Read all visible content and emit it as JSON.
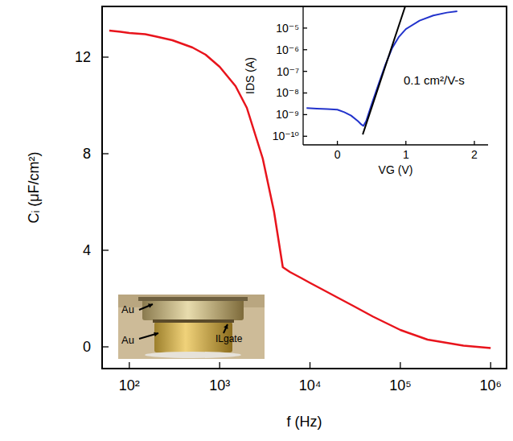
{
  "chart_data": [
    {
      "type": "line",
      "x_label": "f (Hz)",
      "y_label": "Cᵢ (μF/cm²)",
      "log": "x",
      "xlim": [
        50,
        1500000
      ],
      "xticks": [
        {
          "value": 100,
          "label": "10²"
        },
        {
          "value": 1000,
          "label": "10³"
        },
        {
          "value": 10000,
          "label": "10⁴"
        },
        {
          "value": 100000,
          "label": "10⁵"
        },
        {
          "value": 1000000,
          "label": "10⁶"
        }
      ],
      "ylim": [
        -0.9,
        14.1
      ],
      "yticks": [
        0,
        4,
        8,
        12
      ],
      "x": [
        60,
        80,
        100,
        150,
        200,
        300,
        500,
        700,
        1000,
        1500,
        2000,
        3000,
        4000,
        5000,
        6000,
        8000,
        10000,
        15000,
        20000,
        30000,
        50000,
        100000,
        200000,
        500000,
        1000000
      ],
      "series": [
        {
          "color": "#e8141c",
          "line_style": "solid",
          "values": [
            13.1,
            13.05,
            13.0,
            12.95,
            12.85,
            12.7,
            12.4,
            12.1,
            11.6,
            10.8,
            9.9,
            7.8,
            5.6,
            3.3,
            3.1,
            2.85,
            2.65,
            2.3,
            2.05,
            1.7,
            1.25,
            0.7,
            0.3,
            0.05,
            -0.05
          ]
        }
      ],
      "annotations": [
        "Au",
        "Au",
        "ILgate"
      ]
    },
    {
      "type": "line",
      "x_label": "VG (V)",
      "y_label": "IDS (A)",
      "log": "y",
      "xlim": [
        -0.5,
        2.2
      ],
      "xticks": [
        0,
        1,
        2
      ],
      "ylim": [
        4e-11,
        0.0001
      ],
      "yticks": [
        {
          "value": 1e-10,
          "label": "10⁻¹⁰"
        },
        {
          "value": 1e-09,
          "label": "10⁻⁹"
        },
        {
          "value": 1e-08,
          "label": "10⁻⁸"
        },
        {
          "value": 1e-07,
          "label": "10⁻⁷"
        },
        {
          "value": 1e-06,
          "label": "10⁻⁶"
        },
        {
          "value": 1e-05,
          "label": "10⁻⁵"
        }
      ],
      "series": [
        {
          "color": "#2233cc",
          "line_style": "solid",
          "x": [
            -0.45,
            -0.3,
            -0.15,
            0,
            0.1,
            0.2,
            0.3,
            0.35,
            0.38,
            0.42,
            0.5,
            0.6,
            0.7,
            0.8,
            0.9,
            1.0,
            1.2,
            1.4,
            1.6,
            1.75
          ],
          "values": [
            2e-09,
            1.9e-09,
            1.8e-09,
            1.7e-09,
            1.3e-09,
            9e-10,
            5e-10,
            3.5e-10,
            3e-10,
            5e-10,
            3e-09,
            2.5e-08,
            2e-07,
            1.2e-06,
            4e-06,
            9e-06,
            2.2e-05,
            3.8e-05,
            5.2e-05,
            6e-05
          ]
        },
        {
          "color": "#000000",
          "line_style": "solid",
          "x": [
            0.37,
            0.99
          ],
          "values": [
            1.2e-10,
            0.0001
          ]
        }
      ],
      "annotations": [
        "0.1 cm²/V-s"
      ]
    }
  ]
}
